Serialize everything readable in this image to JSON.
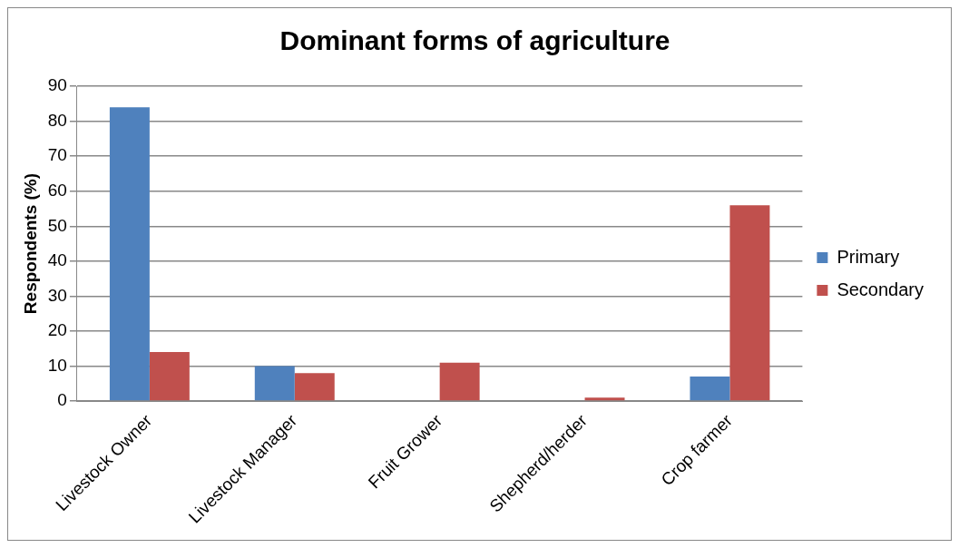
{
  "chart_data": {
    "type": "bar",
    "title": "Dominant forms of agriculture",
    "ylabel": "Respondents (%)",
    "categories": [
      "Livestock Owner",
      "Livestock Manager",
      "Fruit Grower",
      "Shepherd/herder",
      "Crop farmer"
    ],
    "series": [
      {
        "name": "Primary",
        "color": "#4f81bd",
        "values": [
          84,
          10,
          0,
          0,
          7
        ]
      },
      {
        "name": "Secondary",
        "color": "#c0504d",
        "values": [
          14,
          8,
          11,
          1,
          56
        ]
      }
    ],
    "ylim": [
      0,
      90
    ],
    "yticks": [
      0,
      10,
      20,
      30,
      40,
      50,
      60,
      70,
      80,
      90
    ],
    "grid": "y",
    "legend": "right"
  }
}
